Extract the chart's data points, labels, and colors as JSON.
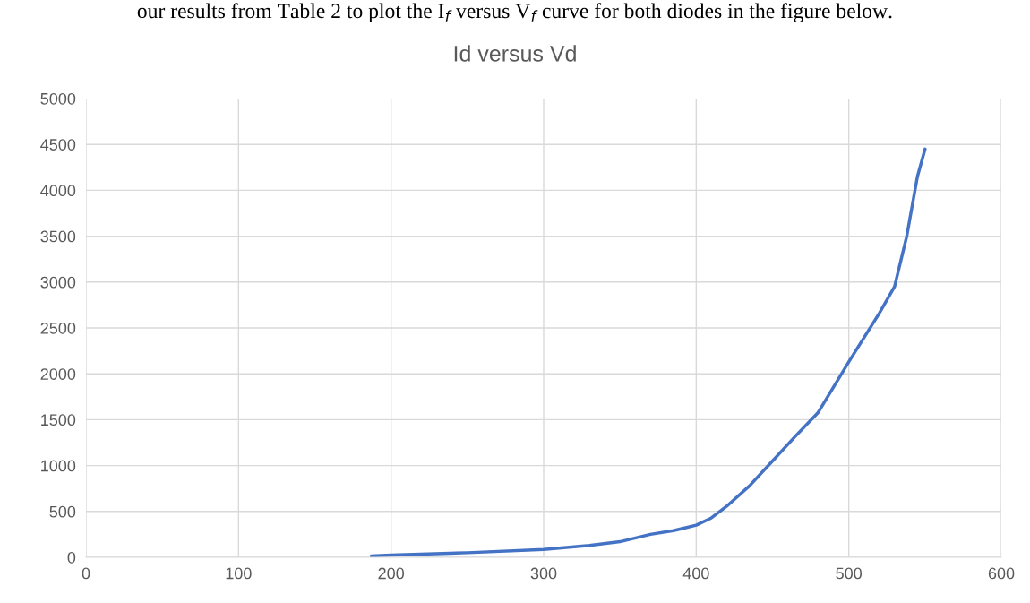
{
  "chart_data": {
    "type": "line",
    "title": "Id versus Vd",
    "annotations": [
      "our results from Table 2 to plot the I$_{f}$ versus V$_{f}$ curve for both diodes in the figure below."
    ],
    "x": [
      187,
      200,
      250,
      300,
      330,
      350,
      370,
      385,
      400,
      410,
      420,
      435,
      450,
      465,
      480,
      500,
      520,
      530,
      538,
      545,
      550
    ],
    "series": [
      {
        "color": "#4472c4",
        "values": [
          15,
          25,
          50,
          85,
          130,
          170,
          250,
          290,
          350,
          430,
          557,
          780,
          1050,
          1320,
          1580,
          2130,
          2660,
          2950,
          3500,
          4150,
          4450
        ]
      }
    ],
    "xlim": [
      0,
      600
    ],
    "xticks": [
      0,
      100,
      200,
      300,
      400,
      500,
      600
    ],
    "ylim": [
      0,
      5000
    ],
    "yticks": [
      0,
      500,
      1000,
      1500,
      2000,
      2500,
      3000,
      3500,
      4000,
      4500,
      5000
    ],
    "grid": true,
    "legend": false,
    "marker": "none",
    "line_style": "solid"
  }
}
